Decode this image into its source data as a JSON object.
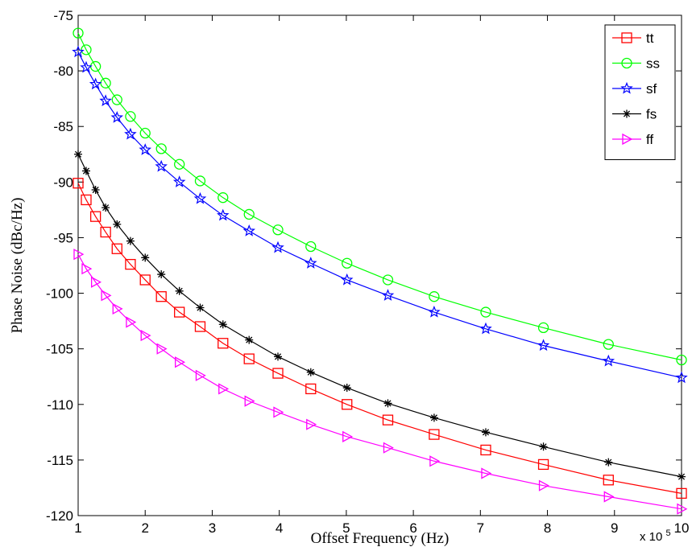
{
  "chart_data": {
    "type": "line",
    "title": "",
    "xlabel": "Offset Frequency (Hz)",
    "ylabel": "Phase Noise (dBc/Hz)",
    "x_multiplier_label": "x 10",
    "x_multiplier_exponent": "5",
    "xlim": [
      1,
      10
    ],
    "ylim": [
      -120,
      -75
    ],
    "x_ticks": [
      1,
      2,
      3,
      4,
      5,
      6,
      7,
      8,
      9,
      10
    ],
    "y_ticks": [
      -75,
      -80,
      -85,
      -90,
      -95,
      -100,
      -105,
      -110,
      -115,
      -120
    ],
    "grid": false,
    "legend_position": "top-right",
    "x": [
      1.0,
      1.12,
      1.26,
      1.41,
      1.58,
      1.78,
      2.0,
      2.24,
      2.51,
      2.82,
      3.16,
      3.55,
      3.98,
      4.47,
      5.01,
      5.62,
      6.31,
      7.08,
      7.94,
      8.91,
      10.0
    ],
    "series": [
      {
        "name": "tt",
        "color": "#ff0000",
        "marker": "square",
        "values": [
          -90.1,
          -91.6,
          -93.1,
          -94.5,
          -96.0,
          -97.4,
          -98.8,
          -100.3,
          -101.7,
          -103.0,
          -104.5,
          -105.9,
          -107.2,
          -108.6,
          -110.0,
          -111.4,
          -112.7,
          -114.1,
          -115.4,
          -116.8,
          -118.0
        ]
      },
      {
        "name": "ss",
        "color": "#00ff00",
        "marker": "circle",
        "values": [
          -76.6,
          -78.1,
          -79.6,
          -81.1,
          -82.6,
          -84.1,
          -85.6,
          -87.0,
          -88.4,
          -89.9,
          -91.4,
          -92.9,
          -94.3,
          -95.8,
          -97.3,
          -98.8,
          -100.3,
          -101.7,
          -103.1,
          -104.6,
          -106.0
        ]
      },
      {
        "name": "sf",
        "color": "#0000ff",
        "marker": "star",
        "values": [
          -78.3,
          -79.7,
          -81.2,
          -82.7,
          -84.2,
          -85.7,
          -87.1,
          -88.6,
          -90.0,
          -91.5,
          -93.0,
          -94.4,
          -95.9,
          -97.3,
          -98.8,
          -100.2,
          -101.7,
          -103.2,
          -104.7,
          -106.1,
          -107.6
        ]
      },
      {
        "name": "fs",
        "color": "#000000",
        "marker": "asterisk",
        "values": [
          -87.5,
          -89.0,
          -90.7,
          -92.3,
          -93.8,
          -95.3,
          -96.8,
          -98.3,
          -99.8,
          -101.3,
          -102.8,
          -104.2,
          -105.7,
          -107.1,
          -108.5,
          -109.9,
          -111.2,
          -112.5,
          -113.8,
          -115.2,
          -116.5
        ]
      },
      {
        "name": "ff",
        "color": "#ff00ff",
        "marker": "triangle-right",
        "values": [
          -96.5,
          -97.8,
          -99.0,
          -100.2,
          -101.4,
          -102.6,
          -103.8,
          -105.0,
          -106.2,
          -107.4,
          -108.6,
          -109.7,
          -110.7,
          -111.8,
          -112.9,
          -113.9,
          -115.1,
          -116.2,
          -117.3,
          -118.3,
          -119.4
        ]
      }
    ]
  }
}
